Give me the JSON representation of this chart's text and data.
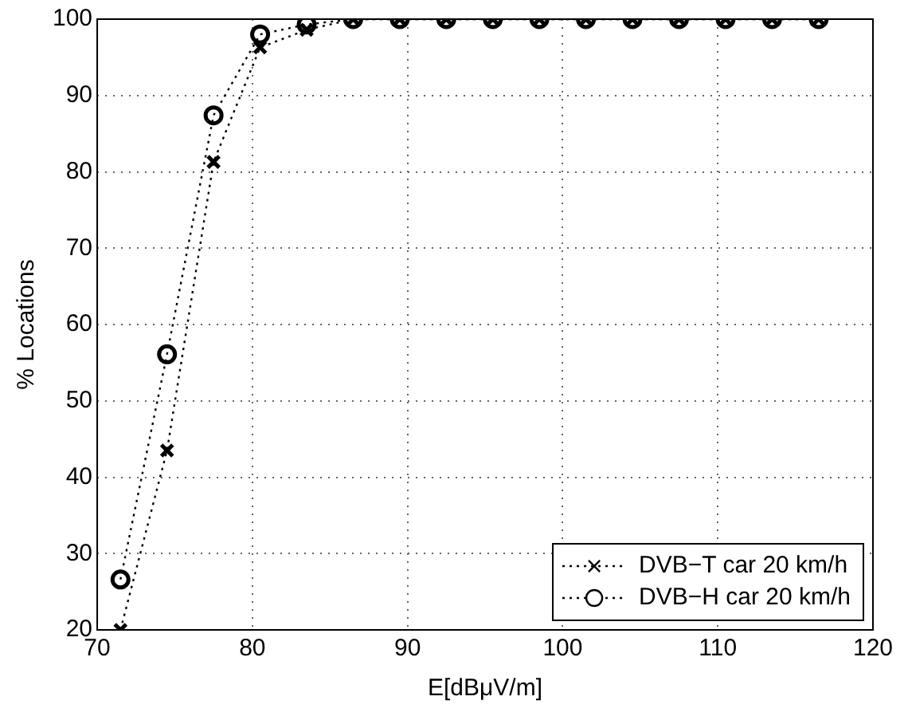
{
  "chart_data": {
    "type": "line",
    "xlabel": "E[dBμV/m]",
    "ylabel": "% Locations",
    "x": [
      71.5,
      74.5,
      77.5,
      80.5,
      83.5,
      86.5,
      89.5,
      92.5,
      95.5,
      98.5,
      101.5,
      104.5,
      107.5,
      110.5,
      113.5,
      116.5
    ],
    "series": [
      {
        "name": "DVB−T car 20 km/h",
        "color": "#000000",
        "marker": "cross",
        "values": [
          20,
          43.5,
          81.3,
          96.3,
          98.6,
          100,
          100,
          100,
          100,
          100,
          100,
          100,
          100,
          100,
          100,
          100
        ]
      },
      {
        "name": "DVB−H car 20 km/h",
        "color": "#000000",
        "marker": "circle",
        "values": [
          26.6,
          56.1,
          87.4,
          98,
          99.3,
          100,
          100,
          100,
          100,
          100,
          100,
          100,
          100,
          100,
          100,
          100
        ]
      }
    ],
    "xlim": [
      70,
      120
    ],
    "xticks": [
      70,
      80,
      90,
      100,
      110,
      120
    ],
    "ylim": [
      20,
      100
    ],
    "yticks": [
      20,
      30,
      40,
      50,
      60,
      70,
      80,
      90,
      100
    ],
    "grid": true,
    "legend": "bottom right",
    "line_style": "dotted"
  }
}
